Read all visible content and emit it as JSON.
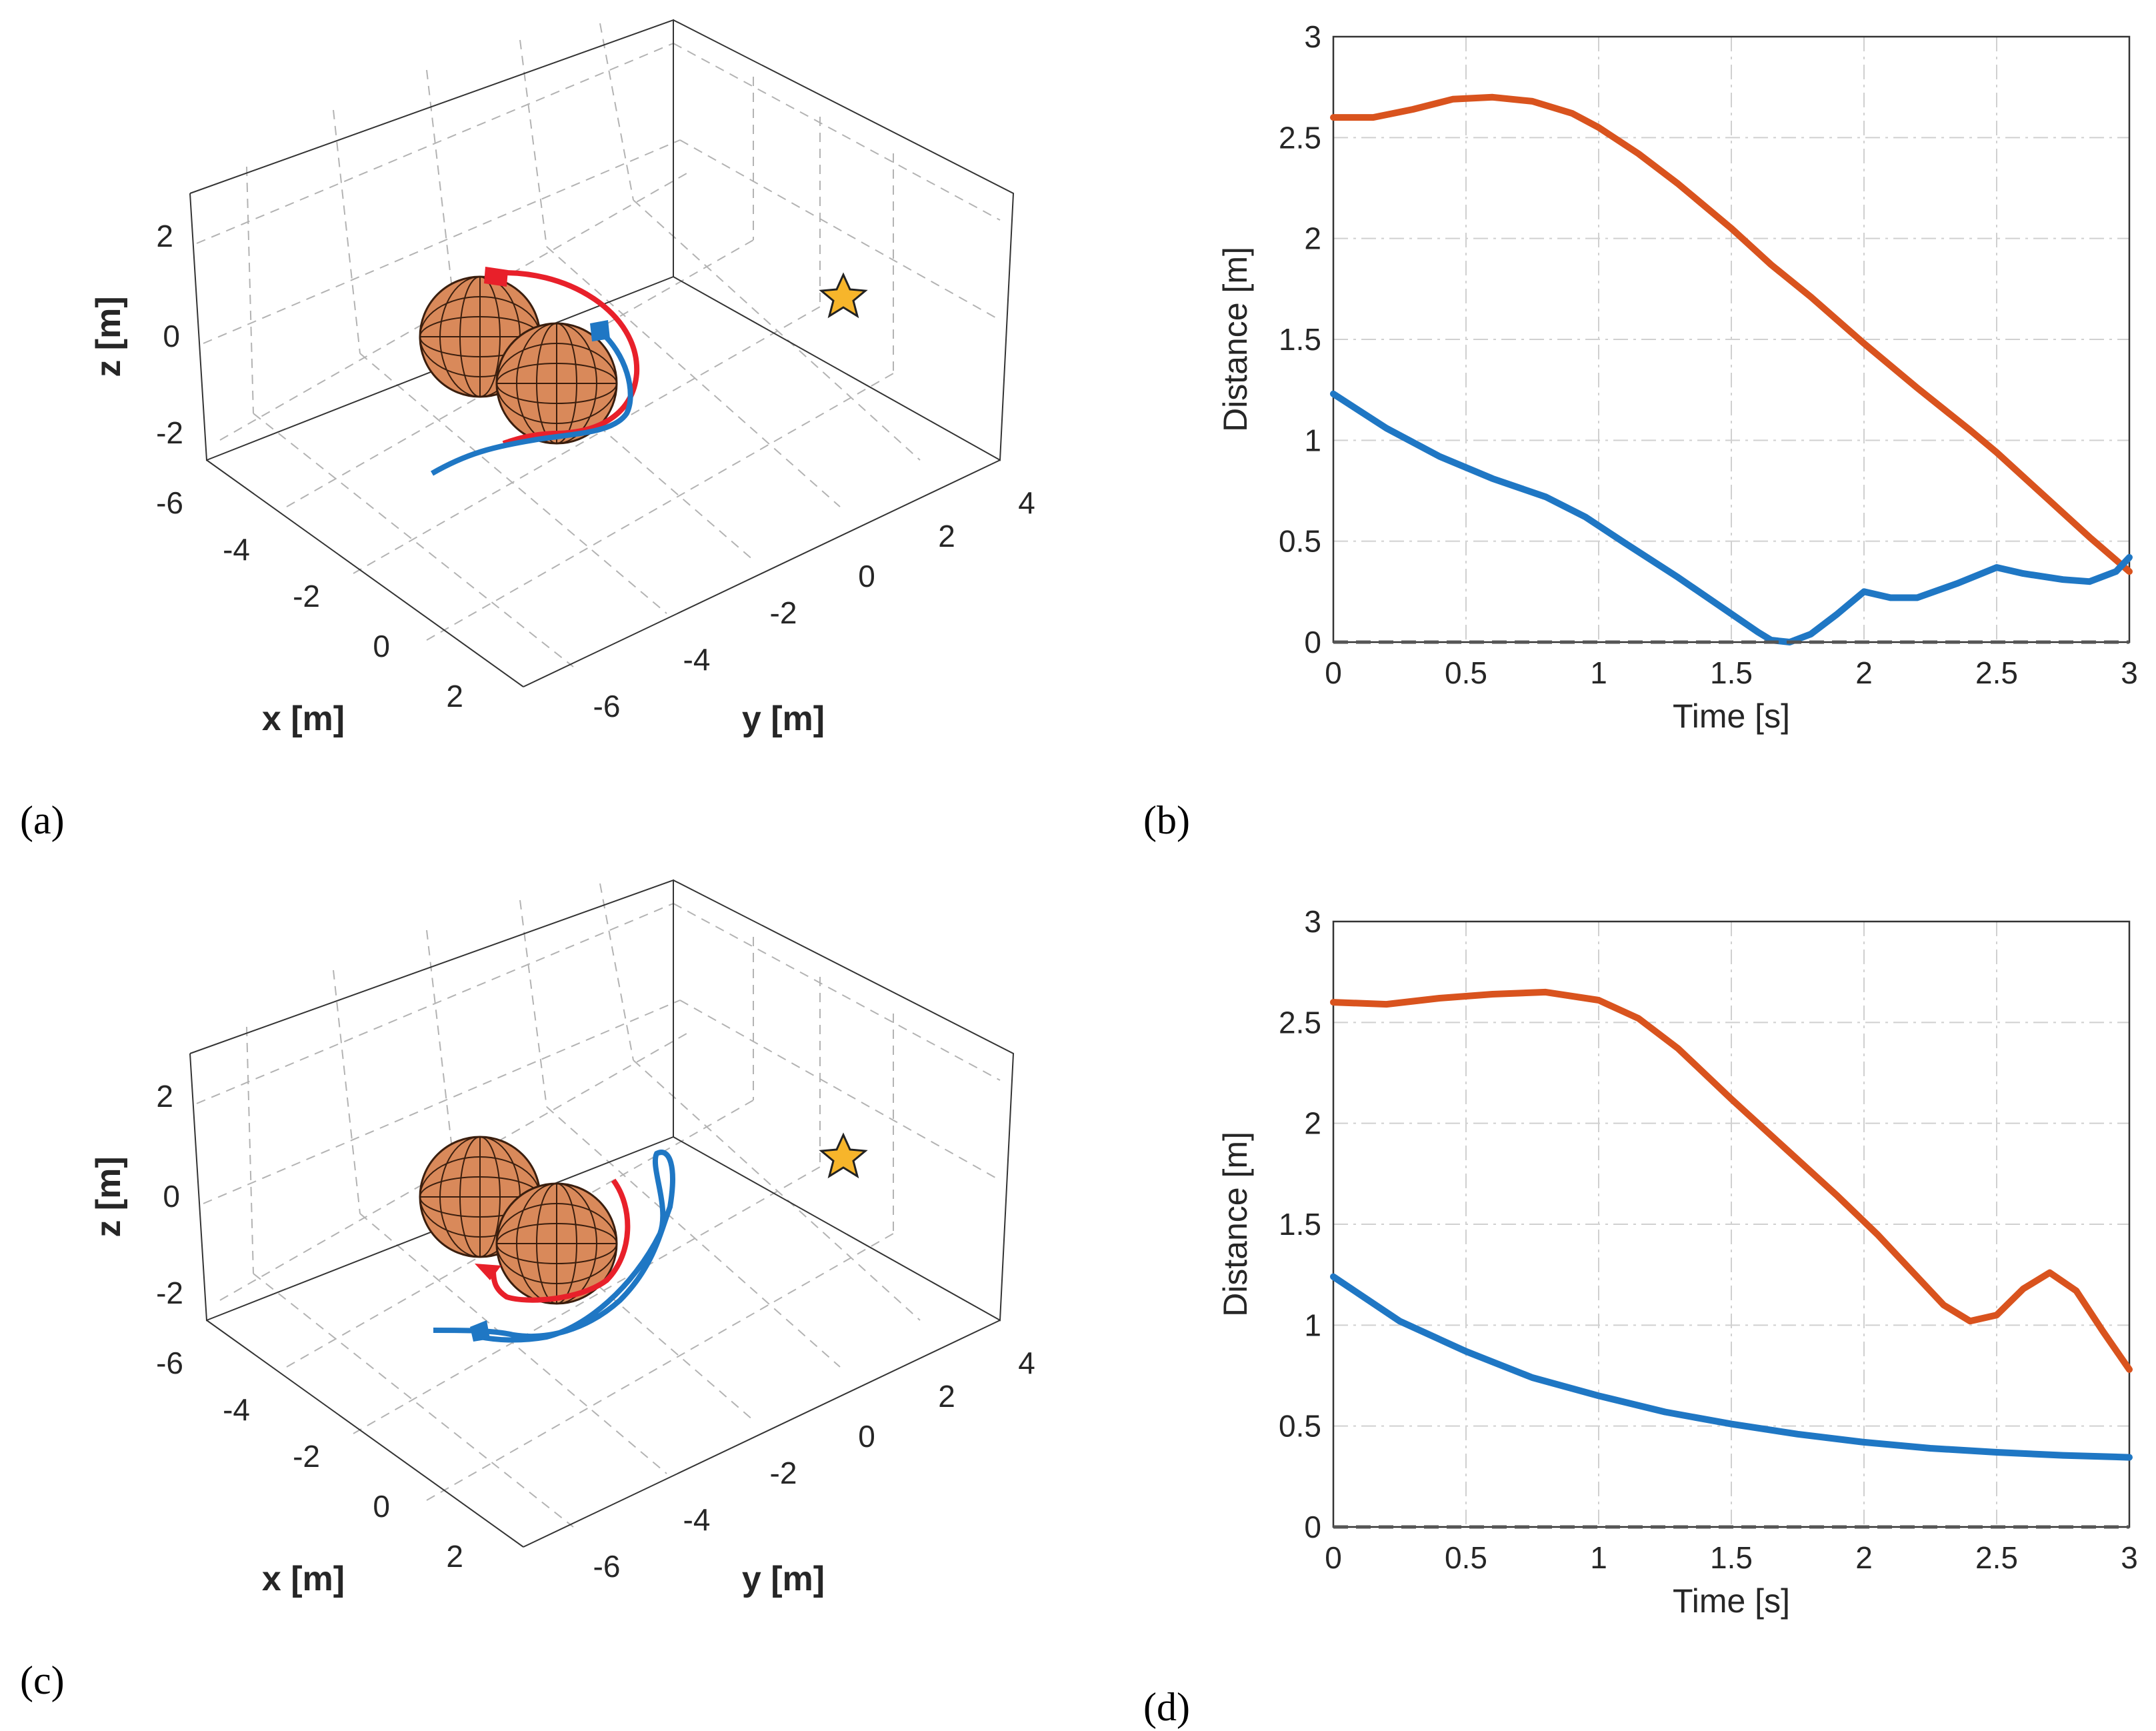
{
  "panels": [
    {
      "id": "a",
      "label": "(a)"
    },
    {
      "id": "b",
      "label": "(b)"
    },
    {
      "id": "c",
      "label": "(c)"
    },
    {
      "id": "d",
      "label": "(d)"
    }
  ],
  "colors": {
    "red_traj": "#e8202a",
    "blue_traj": "#1f77c4",
    "orange_line": "#d9531e",
    "blue_line": "#1f77c4",
    "sphere_fill": "#d9895a",
    "sphere_grid": "#3a1e0e",
    "star_fill": "#f7b52b",
    "zero_line": "#555555"
  },
  "axes3d": {
    "xlabel": "x [m]",
    "ylabel": "y [m]",
    "zlabel": "z [m]",
    "x_ticks": [
      "-6",
      "-4",
      "-2",
      "0",
      "2"
    ],
    "y_ticks": [
      "-6",
      "-4",
      "-2",
      "0",
      "2",
      "4"
    ],
    "z_ticks": [
      "-2",
      "0",
      "2"
    ]
  },
  "chart_data": [
    {
      "panel": "b",
      "type": "line",
      "title": "",
      "xlabel": "Time [s]",
      "ylabel": "Distance [m]",
      "xlim": [
        0,
        3
      ],
      "ylim": [
        0,
        3
      ],
      "x_ticks": [
        "0",
        "0.5",
        "1",
        "1.5",
        "2",
        "2.5",
        "3"
      ],
      "y_ticks": [
        "0",
        "0.5",
        "1",
        "1.5",
        "2",
        "2.5",
        "3"
      ],
      "grid": true,
      "series": [
        {
          "color": "#d9531e",
          "x": [
            0,
            0.15,
            0.3,
            0.45,
            0.6,
            0.75,
            0.9,
            1.0,
            1.15,
            1.3,
            1.5,
            1.65,
            1.8,
            2.0,
            2.2,
            2.4,
            2.5,
            2.7,
            2.85,
            3.0
          ],
          "y": [
            2.6,
            2.6,
            2.64,
            2.69,
            2.7,
            2.68,
            2.62,
            2.55,
            2.42,
            2.27,
            2.05,
            1.87,
            1.71,
            1.48,
            1.26,
            1.05,
            0.94,
            0.7,
            0.52,
            0.35
          ]
        },
        {
          "color": "#1f77c4",
          "x": [
            0,
            0.2,
            0.4,
            0.6,
            0.8,
            0.95,
            1.1,
            1.3,
            1.5,
            1.6,
            1.65,
            1.72,
            1.8,
            1.9,
            2.0,
            2.1,
            2.2,
            2.35,
            2.5,
            2.6,
            2.75,
            2.85,
            2.95,
            3.0
          ],
          "y": [
            1.23,
            1.06,
            0.92,
            0.81,
            0.72,
            0.62,
            0.49,
            0.32,
            0.14,
            0.05,
            0.01,
            0.0,
            0.04,
            0.14,
            0.25,
            0.22,
            0.22,
            0.29,
            0.37,
            0.34,
            0.31,
            0.3,
            0.35,
            0.42
          ]
        }
      ]
    },
    {
      "panel": "d",
      "type": "line",
      "title": "",
      "xlabel": "Time [s]",
      "ylabel": "Distance [m]",
      "xlim": [
        0,
        3
      ],
      "ylim": [
        0,
        3
      ],
      "x_ticks": [
        "0",
        "0.5",
        "1",
        "1.5",
        "2",
        "2.5",
        "3"
      ],
      "y_ticks": [
        "0",
        "0.5",
        "1",
        "1.5",
        "2",
        "2.5",
        "3"
      ],
      "grid": true,
      "series": [
        {
          "color": "#d9531e",
          "x": [
            0,
            0.2,
            0.4,
            0.6,
            0.8,
            1.0,
            1.15,
            1.3,
            1.5,
            1.7,
            1.9,
            2.05,
            2.2,
            2.3,
            2.4,
            2.5,
            2.6,
            2.7,
            2.8,
            2.9,
            3.0
          ],
          "y": [
            2.6,
            2.59,
            2.62,
            2.64,
            2.65,
            2.61,
            2.52,
            2.37,
            2.12,
            1.88,
            1.64,
            1.45,
            1.24,
            1.1,
            1.02,
            1.05,
            1.18,
            1.26,
            1.17,
            0.97,
            0.78
          ]
        },
        {
          "color": "#1f77c4",
          "x": [
            0,
            0.25,
            0.5,
            0.75,
            1.0,
            1.25,
            1.5,
            1.75,
            2.0,
            2.25,
            2.5,
            2.75,
            3.0
          ],
          "y": [
            1.24,
            1.02,
            0.87,
            0.74,
            0.65,
            0.57,
            0.51,
            0.46,
            0.42,
            0.39,
            0.37,
            0.355,
            0.345
          ]
        }
      ]
    }
  ]
}
